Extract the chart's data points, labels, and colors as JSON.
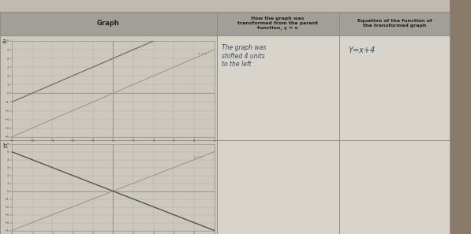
{
  "bg_color": "#b8a898",
  "page_color": "#c8bfb0",
  "table_bg": "#d5cfc5",
  "header_bg": "#a0a098",
  "cell_bg": "#ccc8be",
  "cell_bg_light": "#d8d4cc",
  "border_color": "#888880",
  "col_headers": [
    "Graph",
    "How the graph was\ntransformed from the parent\nfunction, y = x",
    "Equation of the function of\nthe transformed graph"
  ],
  "row_labels": [
    "a.",
    "b."
  ],
  "row_a_text": "The graph was\nshifted 4 units\nto the left",
  "row_a_eq": "Y=x+4",
  "graph_a_xlim": [
    -5,
    5
  ],
  "graph_a_ylim": [
    -5,
    6
  ],
  "graph_b_xlim": [
    -5,
    5
  ],
  "graph_b_ylim": [
    -5,
    6
  ],
  "line_color_parent": "#a09080",
  "line_color_transformed_a": "#706050",
  "line_color_transformed_b": "#505840",
  "label_yequals": "y = x",
  "handwriting_color": "#3a4a5c",
  "eq_color": "#3a4a5c",
  "top_strip_color": "#c0bab0",
  "right_strip_color": "#8a7a6a"
}
